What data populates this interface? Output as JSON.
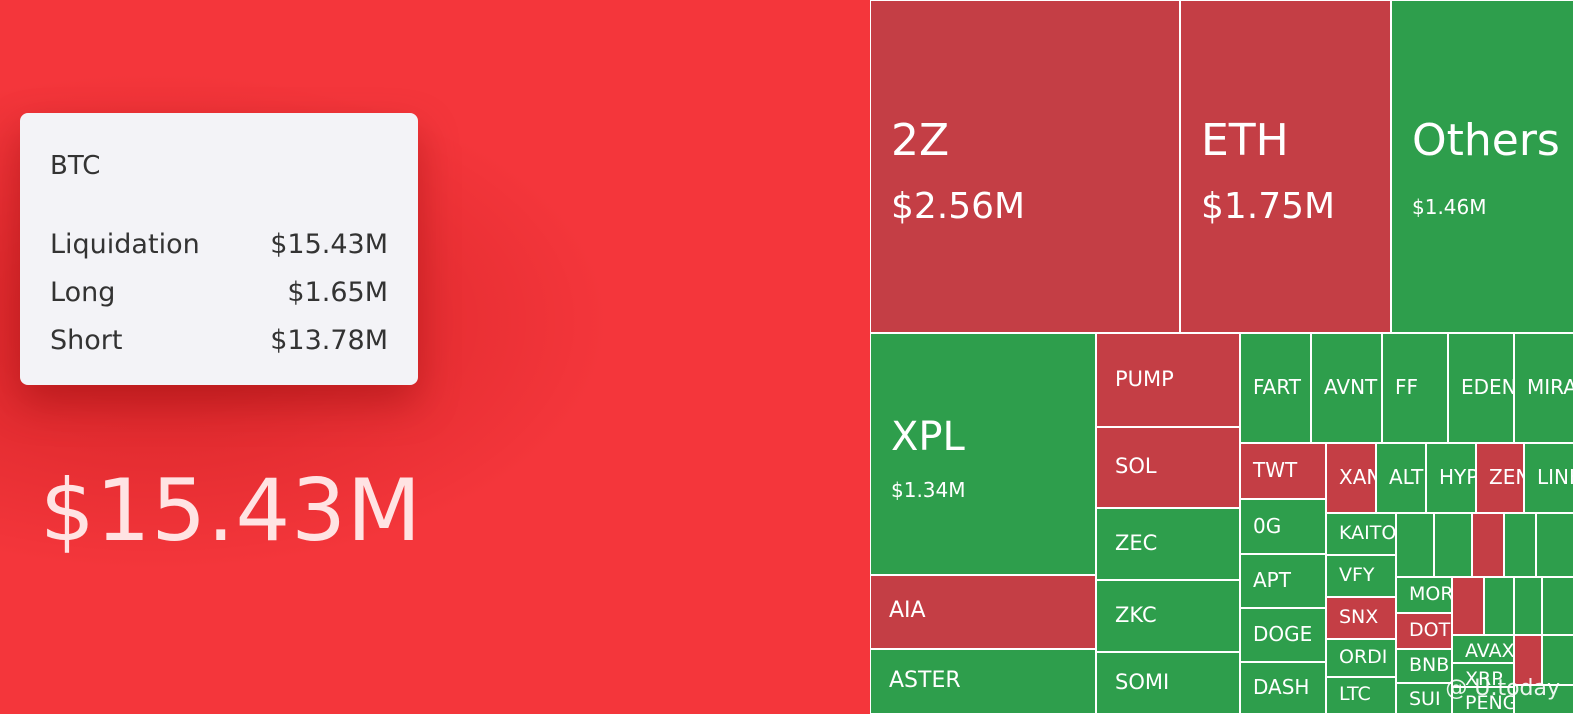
{
  "colors": {
    "long_dominant": "#f4363b",
    "short_dominant_red": "#c43e45",
    "green": "#2e9e4c"
  },
  "tooltip": {
    "title": "BTC",
    "rows": [
      {
        "label": "Liquidation",
        "value": "$15.43M"
      },
      {
        "label": "Long",
        "value": "$1.65M"
      },
      {
        "label": "Short",
        "value": "$13.78M"
      }
    ]
  },
  "btc_amount": "$15.43M",
  "watermark": "@ U.today",
  "chart_data": {
    "type": "treemap",
    "title": "",
    "tiles": [
      {
        "symbol": "BTC",
        "value_label": "$15.43M",
        "value_m": 15.43,
        "color": "red"
      },
      {
        "symbol": "2Z",
        "value_label": "$2.56M",
        "value_m": 2.56,
        "color": "red"
      },
      {
        "symbol": "ETH",
        "value_label": "$1.75M",
        "value_m": 1.75,
        "color": "red"
      },
      {
        "symbol": "Others",
        "value_label": "$1.46M",
        "value_m": 1.46,
        "color": "green"
      },
      {
        "symbol": "XPL",
        "value_label": "$1.34M",
        "value_m": 1.34,
        "color": "green"
      },
      {
        "symbol": "AIA",
        "color": "red"
      },
      {
        "symbol": "ASTER",
        "color": "green"
      },
      {
        "symbol": "PUMP",
        "color": "red"
      },
      {
        "symbol": "SOL",
        "color": "red"
      },
      {
        "symbol": "ZEC",
        "color": "green"
      },
      {
        "symbol": "ZKC",
        "color": "green"
      },
      {
        "symbol": "SOMI",
        "color": "green"
      },
      {
        "symbol": "FART",
        "color": "green"
      },
      {
        "symbol": "AVNT",
        "color": "green"
      },
      {
        "symbol": "FF",
        "color": "green"
      },
      {
        "symbol": "EDEN",
        "color": "green"
      },
      {
        "symbol": "MIRA",
        "color": "green"
      },
      {
        "symbol": "TWT",
        "color": "red"
      },
      {
        "symbol": "XAN",
        "color": "red"
      },
      {
        "symbol": "ALT",
        "color": "green"
      },
      {
        "symbol": "HYPE",
        "color": "green"
      },
      {
        "symbol": "ZEN",
        "color": "red"
      },
      {
        "symbol": "LINK",
        "color": "green"
      },
      {
        "symbol": "0G",
        "color": "green"
      },
      {
        "symbol": "KAITO",
        "color": "green"
      },
      {
        "symbol": "APT",
        "color": "green"
      },
      {
        "symbol": "VFY",
        "color": "green"
      },
      {
        "symbol": "SNX",
        "color": "red"
      },
      {
        "symbol": "DOGE",
        "color": "green"
      },
      {
        "symbol": "ORDI",
        "color": "green"
      },
      {
        "symbol": "DASH",
        "color": "green"
      },
      {
        "symbol": "LTC",
        "color": "green"
      },
      {
        "symbol": "MORPHO",
        "color": "green"
      },
      {
        "symbol": "DOT",
        "color": "red"
      },
      {
        "symbol": "BNB",
        "color": "green"
      },
      {
        "symbol": "SUI",
        "color": "green"
      },
      {
        "symbol": "AVAX",
        "color": "green"
      },
      {
        "symbol": "XRP",
        "color": "green"
      },
      {
        "symbol": "PENGU",
        "color": "green"
      }
    ]
  }
}
